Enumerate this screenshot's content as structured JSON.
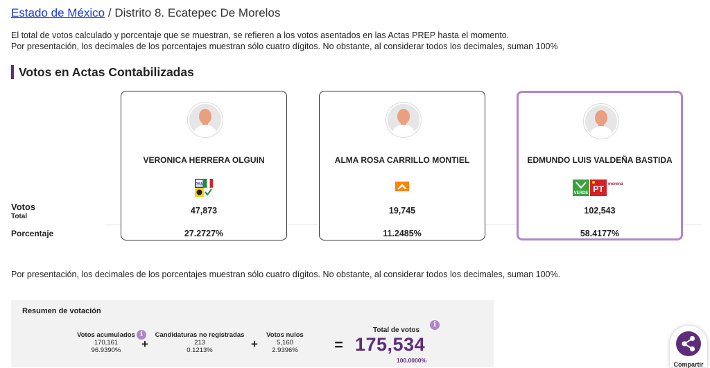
{
  "breadcrumb": {
    "link": "Estado de México",
    "separator": "/",
    "current": "Distrito 8. Ecatepec De Morelos"
  },
  "intro": {
    "line1": "El total de votos calculado y porcentaje que se muestran, se refieren a los votos asentados en las Actas PREP hasta el momento.",
    "line2": "Por presentación, los decimales de los porcentajes muestran sólo cuatro dígitos. No obstante, al considerar todos los decimales, suman 100%"
  },
  "section_title": "Votos en Actas Contabilizadas",
  "row_labels": {
    "votes_main": "Votos",
    "votes_sub": "Total",
    "percentage": "Porcentaje"
  },
  "candidates": [
    {
      "name": "VERONICA HERRERA OLGUIN",
      "votes": "47,873",
      "percentage": "27.2727%",
      "coalition_icons": [
        "pan-logo",
        "pri-logo",
        "prd-logo"
      ],
      "highlighted": false
    },
    {
      "name": "ALMA ROSA CARRILLO MONTIEL",
      "votes": "19,745",
      "percentage": "11.2485%",
      "coalition_icons": [
        "movimiento-ciudadano-logo"
      ],
      "highlighted": false
    },
    {
      "name": "EDMUNDO LUIS VALDEÑA BASTIDA",
      "votes": "102,543",
      "percentage": "58.4177%",
      "coalition_icons": [
        "pvem-logo",
        "pt-logo",
        "morena-logo"
      ],
      "highlighted": true
    }
  ],
  "party_labels": {
    "pan": "PAN",
    "pvem": "VERDE",
    "pt": "PT",
    "morena": "morena"
  },
  "note": "Por presentación, los decimales de los porcentajes muestran sólo cuatro dígitos. No obstante, al considerar todos los decimales, suman 100%.",
  "summary": {
    "title": "Resumen de votación",
    "accumulated": {
      "label": "Votos acumulados",
      "value": "170,161",
      "percentage": "96.9390%"
    },
    "unregistered": {
      "label": "Candidaturas no registradas",
      "value": "213",
      "percentage": "0.1213%"
    },
    "null_votes": {
      "label": "Votos nulos",
      "value": "5,160",
      "percentage": "2.9396%"
    },
    "plus": "+",
    "equals": "=",
    "total": {
      "label": "Total de votos",
      "value": "175,534",
      "percentage": "100.0000%"
    },
    "info_glyph": "i"
  },
  "share": {
    "label": "Compartir"
  },
  "colors": {
    "accent": "#5e2d79",
    "highlight_border": "#b086c9",
    "link": "#1a3cd6"
  }
}
